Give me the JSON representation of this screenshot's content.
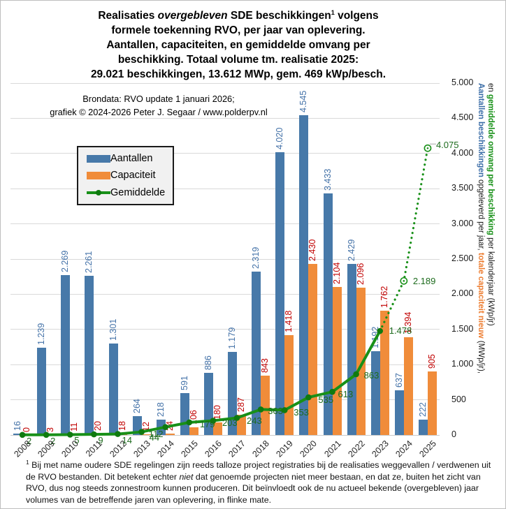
{
  "title": {
    "lines": [
      [
        {
          "t": "Realisaties "
        },
        {
          "t": "overgebleven",
          "style": "italic"
        },
        {
          "t": " SDE beschikkingen"
        },
        {
          "t": "1",
          "style": "sup"
        },
        {
          "t": "  volgens"
        }
      ],
      [
        {
          "t": "formele toekenning RVO, per jaar van oplevering."
        }
      ],
      [
        {
          "t": "Aantallen, capaciteiten, en gemiddelde omvang per"
        }
      ],
      [
        {
          "t": "beschikking. Totaal volume tm. realisatie 2025:"
        }
      ],
      [
        {
          "t": "29.021 beschikkingen, 13.612 MWp, gem. 469 kWp/besch."
        }
      ]
    ]
  },
  "subtitle": {
    "line1": "Brondata: RVO update 1 januari 2026;",
    "line2": "grafiek © 2024-2026 Peter J. Segaar / www.polderpv.nl"
  },
  "legend": {
    "items": [
      {
        "label": "Aantallen",
        "swatch": "blue-bar"
      },
      {
        "label": "Capaciteit",
        "swatch": "orange-bar"
      },
      {
        "label": "Gemiddelde",
        "swatch": "green-line-marker"
      }
    ]
  },
  "y_axis_title": {
    "line1": [
      {
        "t": "Aantallen beschikkingen",
        "style": "blue-bold"
      },
      {
        "t": " opgeleverd per jaar, "
      },
      {
        "t": "totale capaciteit nieuw",
        "style": "orange-bold"
      },
      {
        "t": " (MWp/jr),"
      }
    ],
    "line2": [
      {
        "t": "en "
      },
      {
        "t": "gemiddelde omvang per beschikking",
        "style": "green-bold"
      },
      {
        "t": " per kalenderjaar (kWp/jr)"
      }
    ]
  },
  "chart_data": {
    "type": "bar",
    "subtype": "grouped bars + line overlay",
    "categories": [
      "2008",
      "2009",
      "2010",
      "2011",
      "2012",
      "2013",
      "2014",
      "2015",
      "2016",
      "2017",
      "2018",
      "2019",
      "2020",
      "2021",
      "2022",
      "2023",
      "2024",
      "2025"
    ],
    "series": [
      {
        "name": "Aantallen",
        "type": "bar",
        "color": "#4779A9",
        "label_color": "#4472A8",
        "values": [
          16,
          1239,
          2269,
          2261,
          1301,
          264,
          218,
          591,
          886,
          1179,
          2319,
          4020,
          4545,
          3433,
          2429,
          1192,
          637,
          222
        ],
        "labels": [
          "16",
          "1.239",
          "2.269",
          "2.261",
          "1.301",
          "264",
          "218",
          "591",
          "886",
          "1.179",
          "2.319",
          "4.020",
          "4.545",
          "3.433",
          "2.429",
          "1.192",
          "637",
          "222"
        ]
      },
      {
        "name": "Capaciteit",
        "type": "bar",
        "color": "#F08C3A",
        "label_color": "#C00000",
        "values": [
          0,
          3,
          11,
          20,
          18,
          12,
          24,
          106,
          180,
          287,
          843,
          1418,
          2430,
          2104,
          2096,
          1762,
          1394,
          905
        ],
        "labels": [
          "0",
          "3",
          "11",
          "20",
          "18",
          "12",
          "24",
          "106",
          "180",
          "287",
          "843",
          "1.418",
          "2.430",
          "2.104",
          "2.096",
          "1.762",
          "1.394",
          "905"
        ]
      },
      {
        "name": "Gemiddelde",
        "type": "line",
        "color": "#189018",
        "marker_color": "#0F7A0F",
        "label_color": "#1D6B1D",
        "values": [
          2,
          2,
          5,
          9,
          14,
          44,
          112,
          179,
          203,
          243,
          363,
          353,
          535,
          613,
          863,
          1478,
          2189,
          4075
        ],
        "labels": [
          "2",
          "2",
          "5",
          "9",
          "14",
          "44",
          "112",
          "179",
          "203",
          "243",
          "363",
          "353",
          "535",
          "613",
          "863",
          "1.478",
          "2.189",
          "4.075"
        ],
        "dotted_from_index": 15,
        "open_marker_indices": [
          16,
          17
        ]
      }
    ],
    "ylim": [
      0,
      5000
    ],
    "ytick_labels": [
      "0",
      "500",
      "1.000",
      "1.500",
      "2.000",
      "2.500",
      "3.000",
      "3.500",
      "4.000",
      "4.500",
      "5.000"
    ],
    "grid": true,
    "legend_position": "inside-top-left",
    "x_label_rotation_deg": -45,
    "gridline_color": "#D9D9D9"
  },
  "footnote": {
    "runs": [
      {
        "t": "1",
        "style": "sup"
      },
      {
        "t": " Bij met name oudere SDE regelingen zijn reeds talloze project registraties bij de realisaties weggevallen / verdwenen uit de RVO bestanden. Dit betekent echter "
      },
      {
        "t": "niet",
        "style": "italic"
      },
      {
        "t": " dat genoemde projecten niet meer bestaan, en dat ze, buiten het zicht van RVO, dus nog steeds zonnestroom kunnen produceren. Dit beïnvloedt ook de nu actueel bekende (overgebleven) jaar volumes van de betreffende jaren van oplevering, in flinke mate."
      }
    ]
  }
}
